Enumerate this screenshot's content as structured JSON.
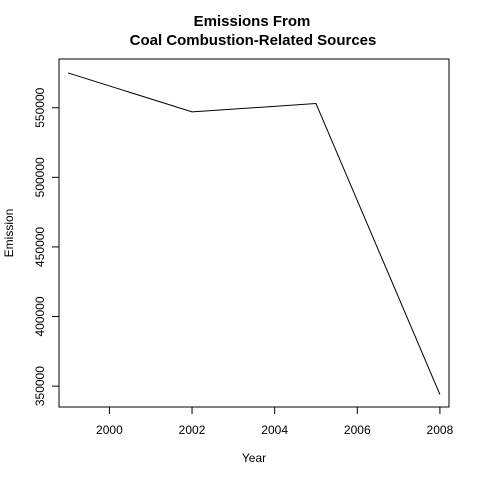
{
  "chart_data": {
    "type": "line",
    "title": [
      "Emissions From",
      "Coal Combustion-Related Sources"
    ],
    "xlabel": "Year",
    "ylabel": "Emission",
    "x": [
      1999,
      2002,
      2005,
      2008
    ],
    "y": [
      575000,
      547000,
      553000,
      344000
    ],
    "xlim": [
      1998.78,
      2008.22
    ],
    "ylim": [
      335000,
      585000
    ],
    "x_ticks": [
      2000,
      2002,
      2004,
      2006,
      2008
    ],
    "y_ticks": [
      350000,
      400000,
      450000,
      500000,
      550000
    ],
    "line_color": "#000000",
    "grid": false,
    "legend": "none"
  }
}
